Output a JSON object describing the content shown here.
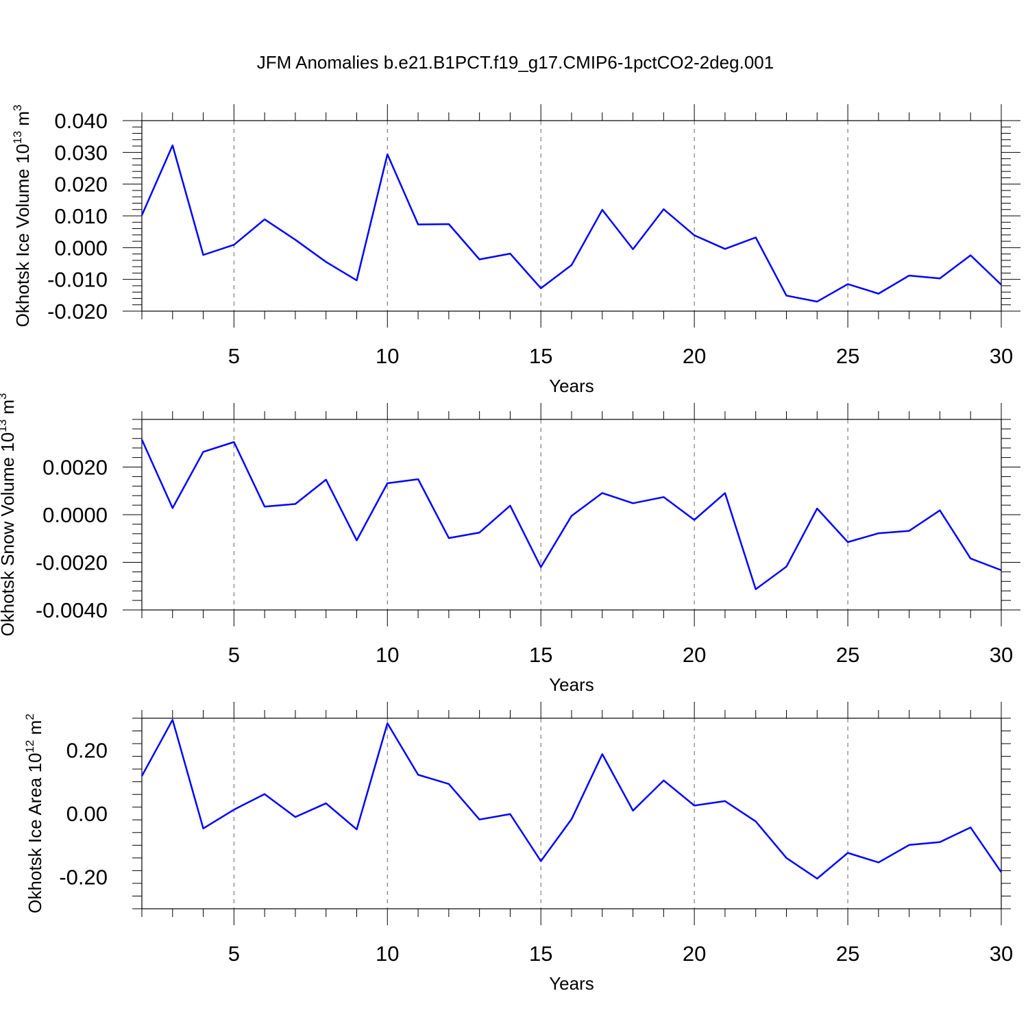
{
  "title": "JFM Anomalies b.e21.B1PCT.f19_g17.CMIP6-1pctCO2-2deg.001",
  "colors": {
    "line": "#0000ff",
    "axis": "#000000",
    "grid": "#666666"
  },
  "chart_data": [
    {
      "type": "line",
      "ylabel": {
        "base": "Okhotsk Ice Volume 10",
        "exp": "13",
        "unit": " m",
        "unit_exp": "3"
      },
      "xlabel": "Years",
      "xlim": [
        2,
        30
      ],
      "ylim": [
        -0.02,
        0.04
      ],
      "yticks": [
        -0.02,
        -0.01,
        0.0,
        0.01,
        0.02,
        0.03,
        0.04
      ],
      "yticklabels": [
        "-0.020",
        "-0.010",
        "0.000",
        "0.010",
        "0.020",
        "0.030",
        "0.040"
      ],
      "xticks": [
        5,
        10,
        15,
        20,
        25,
        30
      ],
      "xticklabels": [
        "5",
        "10",
        "15",
        "20",
        "25",
        "30"
      ],
      "x": [
        2,
        3,
        4,
        5,
        6,
        7,
        8,
        9,
        10,
        11,
        12,
        13,
        14,
        15,
        16,
        17,
        18,
        19,
        20,
        21,
        22,
        23,
        24,
        25,
        26,
        27,
        28,
        29,
        30
      ],
      "series": [
        {
          "name": "Okhotsk Ice Volume",
          "values": [
            0.0102,
            0.0322,
            -0.0023,
            0.0009,
            0.0089,
            0.0025,
            -0.0045,
            -0.0103,
            0.0294,
            0.0073,
            0.0074,
            -0.0037,
            -0.0019,
            -0.0128,
            -0.0055,
            0.0119,
            -0.0005,
            0.0121,
            0.0039,
            -0.0004,
            0.0032,
            -0.0151,
            -0.017,
            -0.0115,
            -0.0145,
            -0.0088,
            -0.0097,
            -0.0024,
            -0.0117
          ]
        }
      ]
    },
    {
      "type": "line",
      "ylabel": {
        "base": "Okhotsk Snow Volume 10",
        "exp": "13",
        "unit": " m",
        "unit_exp": "3"
      },
      "xlabel": "Years",
      "xlim": [
        2,
        30
      ],
      "ylim": [
        -0.004,
        0.004
      ],
      "yticks": [
        -0.004,
        -0.002,
        0.0,
        0.002
      ],
      "yticklabels": [
        "-0.0040",
        "-0.0020",
        "0.0000",
        "0.0020"
      ],
      "xticks": [
        5,
        10,
        15,
        20,
        25,
        30
      ],
      "xticklabels": [
        "5",
        "10",
        "15",
        "20",
        "25",
        "30"
      ],
      "x": [
        2,
        3,
        4,
        5,
        6,
        7,
        8,
        9,
        10,
        11,
        12,
        13,
        14,
        15,
        16,
        17,
        18,
        19,
        20,
        21,
        22,
        23,
        24,
        25,
        26,
        27,
        28,
        29,
        30
      ],
      "series": [
        {
          "name": "Okhotsk Snow Volume",
          "values": [
            0.00315,
            0.00028,
            0.00264,
            0.00305,
            0.00034,
            0.00045,
            0.00147,
            -0.00108,
            0.00132,
            0.00149,
            -0.00098,
            -0.00075,
            0.00038,
            -0.0022,
            -5e-05,
            0.00091,
            0.00048,
            0.00074,
            -0.00022,
            0.00091,
            -0.00313,
            -0.00218,
            0.00026,
            -0.00115,
            -0.00078,
            -0.00068,
            0.00018,
            -0.00184,
            -0.00233
          ]
        }
      ]
    },
    {
      "type": "line",
      "ylabel": {
        "base": "Okhotsk Ice Area 10",
        "exp": "12",
        "unit": " m",
        "unit_exp": "2"
      },
      "xlabel": "Years",
      "xlim": [
        2,
        30
      ],
      "ylim": [
        -0.3,
        0.3
      ],
      "yticks": [
        -0.2,
        0.0,
        0.2
      ],
      "yticklabels": [
        "-0.20",
        "0.00",
        "0.20"
      ],
      "xticks": [
        5,
        10,
        15,
        20,
        25,
        30
      ],
      "xticklabels": [
        "5",
        "10",
        "15",
        "20",
        "25",
        "30"
      ],
      "x": [
        2,
        3,
        4,
        5,
        6,
        7,
        8,
        9,
        10,
        11,
        12,
        13,
        14,
        15,
        16,
        17,
        18,
        19,
        20,
        21,
        22,
        23,
        24,
        25,
        26,
        27,
        28,
        29,
        30
      ],
      "series": [
        {
          "name": "Okhotsk Ice Area",
          "values": [
            0.118,
            0.295,
            -0.047,
            0.012,
            0.061,
            -0.011,
            0.032,
            -0.05,
            0.284,
            0.122,
            0.093,
            -0.019,
            -0.002,
            -0.15,
            -0.018,
            0.187,
            0.009,
            0.104,
            0.025,
            0.039,
            -0.025,
            -0.14,
            -0.205,
            -0.124,
            -0.154,
            -0.099,
            -0.09,
            -0.044,
            -0.185
          ]
        }
      ]
    }
  ]
}
